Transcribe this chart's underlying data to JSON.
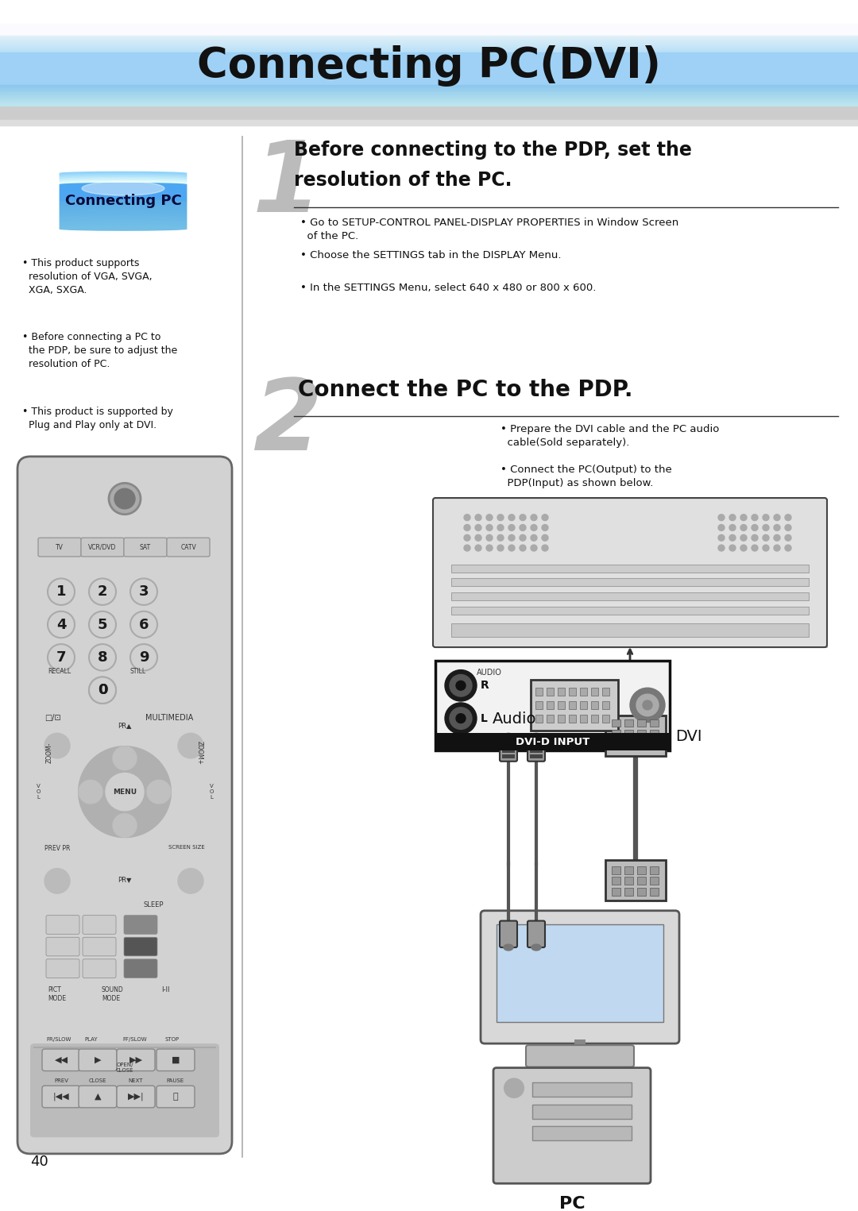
{
  "title": "Connecting PC(DVI)",
  "page_bg": "#ffffff",
  "step1_heading_line1": "Before connecting to the PDP, set the",
  "step1_heading_line2": "resolution of the PC.",
  "step1_bullets": [
    "Go to SETUP-CONTROL PANEL-DISPLAY PROPERTIES in Window Screen\n  of the PC.",
    "Choose the SETTINGS tab in the DISPLAY Menu.",
    "In the SETTINGS Menu, select 640 x 480 or 800 x 600."
  ],
  "step2_heading": "Connect the PC to the PDP.",
  "step2_bullets": [
    "Prepare the DVI cable and the PC audio\n  cable(Sold separately).",
    "Connect the PC(Output) to the\n  PDP(Input) as shown below."
  ],
  "sidebar_label": "Connecting PC",
  "sidebar_bullets": [
    "• This product supports\n  resolution of VGA, SVGA,\n  XGA, SXGA.",
    "• Before connecting a PC to\n  the PDP, be sure to adjust the\n  resolution of PC.",
    "• This product is supported by\n  Plug and Play only at DVI."
  ],
  "audio_label": "Audio",
  "dvi_label": "DVI",
  "pc_label": "PC",
  "dvi_input_label": "DVI-D INPUT",
  "page_number": "40"
}
